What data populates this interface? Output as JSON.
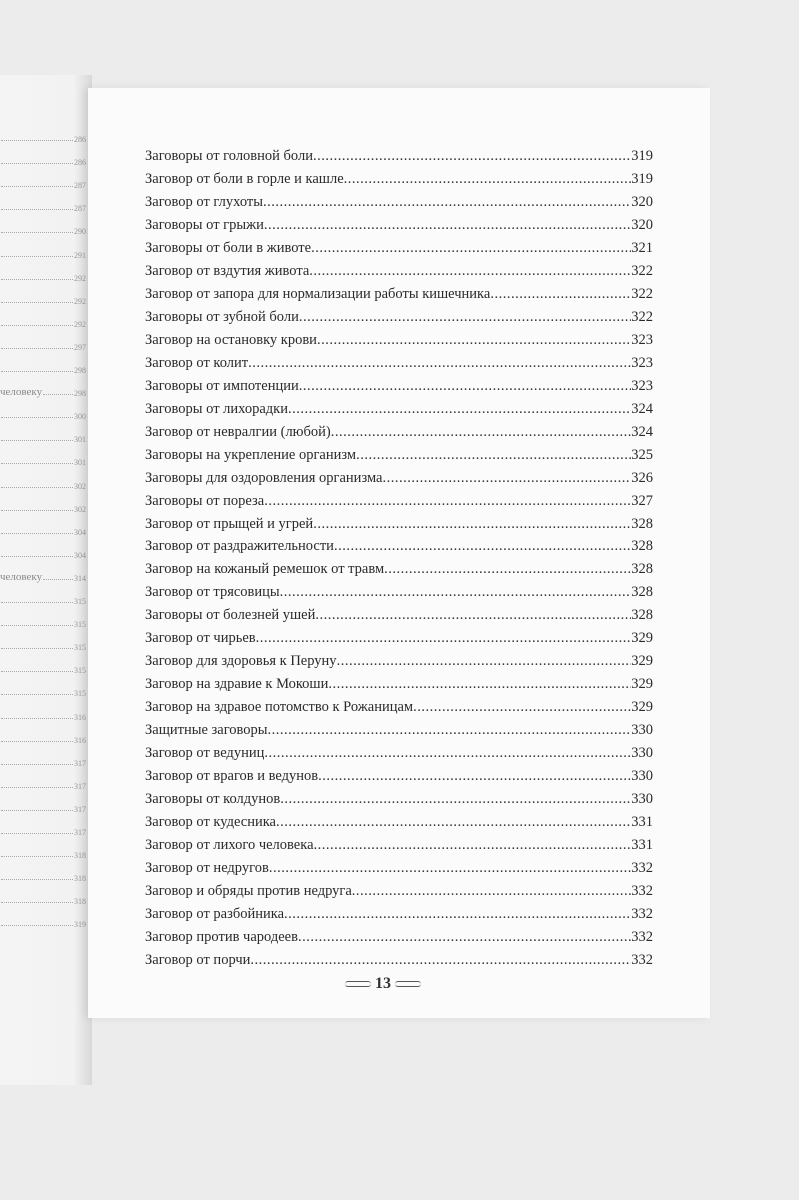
{
  "left_page": {
    "rows": [
      {
        "text": "",
        "page": "286"
      },
      {
        "text": "",
        "page": "286"
      },
      {
        "text": "",
        "page": "287"
      },
      {
        "text": "",
        "page": "287"
      },
      {
        "text": "",
        "page": "290"
      },
      {
        "text": "",
        "page": "291"
      },
      {
        "text": "",
        "page": "292"
      },
      {
        "text": "",
        "page": "292"
      },
      {
        "text": "",
        "page": "292"
      },
      {
        "text": "",
        "page": "297"
      },
      {
        "text": "",
        "page": "298"
      },
      {
        "text": "человеку",
        "page": "298"
      },
      {
        "text": "",
        "page": "300"
      },
      {
        "text": "",
        "page": "301"
      },
      {
        "text": "",
        "page": "301"
      },
      {
        "text": "",
        "page": "302"
      },
      {
        "text": "",
        "page": "302"
      },
      {
        "text": "",
        "page": "304"
      },
      {
        "text": "",
        "page": "304"
      },
      {
        "text": "человеку",
        "page": "314"
      },
      {
        "text": "",
        "page": "315"
      },
      {
        "text": "",
        "page": "315"
      },
      {
        "text": "",
        "page": "315"
      },
      {
        "text": "",
        "page": "315"
      },
      {
        "text": "",
        "page": "315"
      },
      {
        "text": "",
        "page": "316"
      },
      {
        "text": "",
        "page": "316"
      },
      {
        "text": "",
        "page": "317"
      },
      {
        "text": "",
        "page": "317"
      },
      {
        "text": "",
        "page": "317"
      },
      {
        "text": "",
        "page": "317"
      },
      {
        "text": "",
        "page": "318"
      },
      {
        "text": "",
        "page": "318"
      },
      {
        "text": "",
        "page": "318"
      },
      {
        "text": "",
        "page": "319"
      }
    ]
  },
  "toc": [
    {
      "title": "Заговоры от головной боли",
      "page": "319"
    },
    {
      "title": "Заговор от боли в горле и кашле",
      "page": "319"
    },
    {
      "title": "Заговор от глухоты",
      "page": "320"
    },
    {
      "title": "Заговоры от грыжи",
      "page": "320"
    },
    {
      "title": "Заговоры от боли в животе",
      "page": "321"
    },
    {
      "title": "Заговор от вздутия живота",
      "page": "322"
    },
    {
      "title": "Заговор от запора для нормализации работы кишечника",
      "page": "322"
    },
    {
      "title": "Заговоры от зубной боли",
      "page": "322"
    },
    {
      "title": "Заговор на остановку крови",
      "page": "323"
    },
    {
      "title": "Заговор от колит",
      "page": "323"
    },
    {
      "title": "Заговоры от импотенции",
      "page": "323"
    },
    {
      "title": "Заговоры от лихорадки",
      "page": "324"
    },
    {
      "title": "Заговор от невралгии (любой)",
      "page": "324"
    },
    {
      "title": "Заговоры на укрепление организм",
      "page": "325"
    },
    {
      "title": "Заговоры для оздоровления организма",
      "page": "326"
    },
    {
      "title": "Заговоры от пореза",
      "page": "327"
    },
    {
      "title": "Заговор от прыщей и угрей",
      "page": "328"
    },
    {
      "title": "Заговор от раздражительности",
      "page": "328"
    },
    {
      "title": "Заговор на кожаный ремешок от травм",
      "page": "328"
    },
    {
      "title": "Заговор от трясовицы",
      "page": "328"
    },
    {
      "title": "Заговоры от болезней ушей",
      "page": "328"
    },
    {
      "title": "Заговор от чирьев",
      "page": "329"
    },
    {
      "title": "Заговор для здоровья к Перуну",
      "page": "329"
    },
    {
      "title": "Заговор на здравие к Мокоши",
      "page": "329"
    },
    {
      "title": "Заговор на здравое потомство к Рожаницам",
      "page": "329"
    },
    {
      "title": "Защитные заговоры",
      "page": "330"
    },
    {
      "title": "Заговор от ведуниц",
      "page": "330"
    },
    {
      "title": "Заговор от врагов и ведунов",
      "page": "330"
    },
    {
      "title": "Заговоры от колдунов",
      "page": "330"
    },
    {
      "title": "Заговор от кудесника",
      "page": "331"
    },
    {
      "title": "Заговор от лихого человека",
      "page": "331"
    },
    {
      "title": "Заговор от недругов",
      "page": "332"
    },
    {
      "title": "Заговор и обряды против недруга",
      "page": "332"
    },
    {
      "title": "Заговор от разбойника",
      "page": "332"
    },
    {
      "title": "Заговор против чародеев",
      "page": "332"
    },
    {
      "title": "Заговор от порчи",
      "page": "332"
    }
  ],
  "footer": {
    "page_number": "13"
  }
}
